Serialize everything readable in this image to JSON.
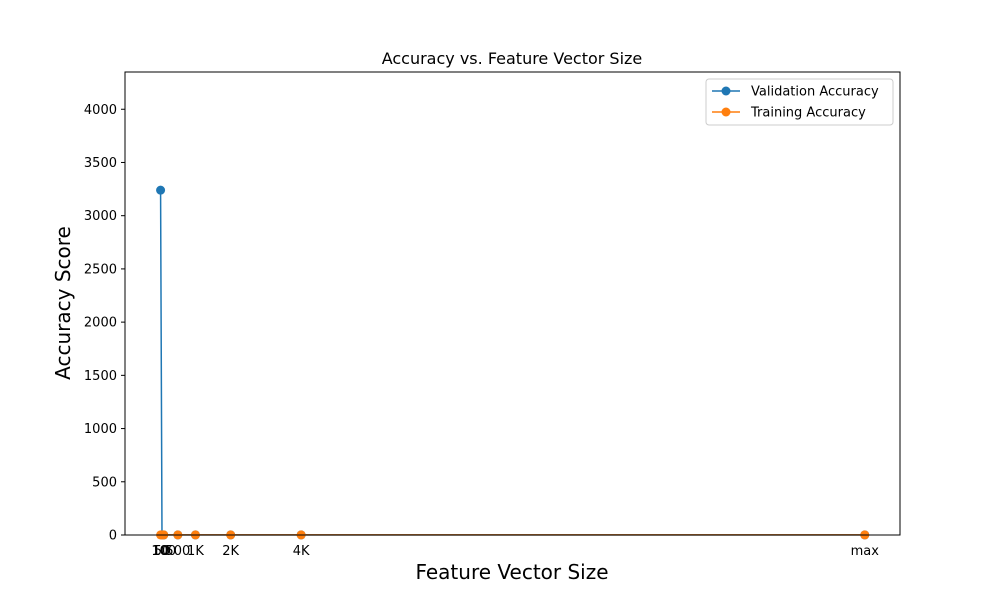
{
  "colors": {
    "validation": "#1f77b4",
    "training": "#ff7f0e",
    "axis": "#000000"
  },
  "chart_data": {
    "type": "line",
    "title": "Accuracy vs. Feature Vector Size",
    "xlabel": "Feature Vector Size",
    "ylabel": "Accuracy Score",
    "x": [
      10,
      50,
      100,
      500,
      1000,
      2000,
      4000,
      20000
    ],
    "x_tick_labels": [
      "10",
      "50",
      "100",
      "500",
      "1K",
      "2K",
      "4K",
      "max"
    ],
    "xlim": [
      -1000,
      21000
    ],
    "ylim": [
      0,
      4350
    ],
    "yticks": [
      0,
      500,
      1000,
      1500,
      2000,
      2500,
      3000,
      3500,
      4000
    ],
    "series": [
      {
        "name": "Validation Accuracy",
        "color": "#1f77b4",
        "values": [
          3240,
          0.9,
          0.9,
          0.9,
          0.9,
          0.9,
          0.9,
          0.9
        ]
      },
      {
        "name": "Training Accuracy",
        "color": "#ff7f0e",
        "values": [
          1.0,
          1.0,
          1.0,
          1.0,
          1.0,
          1.0,
          1.0,
          1.0
        ]
      }
    ],
    "legend_position": "top-right",
    "grid": false
  }
}
